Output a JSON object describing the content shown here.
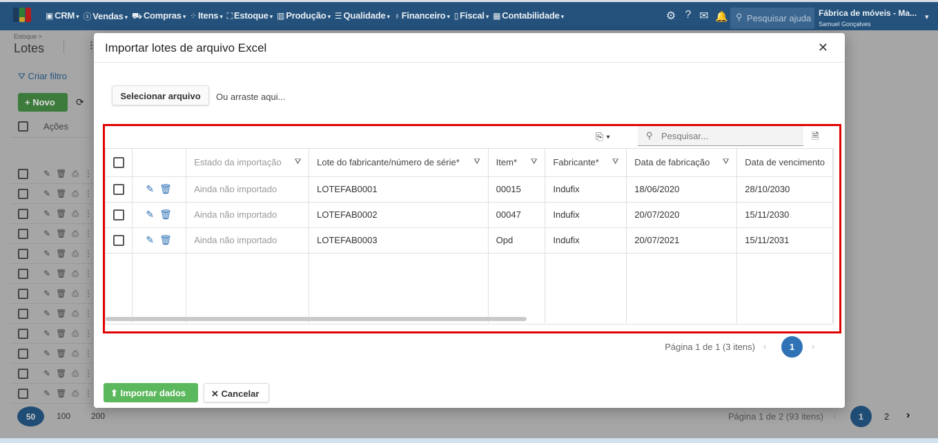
{
  "nav": {
    "menu": [
      "CRM",
      "Vendas",
      "Compras",
      "Itens",
      "Estoque",
      "Produção",
      "Qualidade",
      "Financeiro",
      "Fiscal",
      "Contabilidade"
    ],
    "search_placeholder": "Pesquisar ajuda",
    "company": "Fábrica de móveis - Ma...",
    "user": "Samuel Gonçalves"
  },
  "page": {
    "breadcrumb": "Estoque >",
    "title": "Lotes",
    "filter": "Criar filtro",
    "new_button": "Novo",
    "actions_header": "Ações",
    "page_sizes": [
      "50",
      "100",
      "200"
    ],
    "pager_text": "Página 1 de 2 (93 itens)",
    "pages": [
      "1",
      "2"
    ]
  },
  "dialog": {
    "title": "Importar lotes de arquivo Excel",
    "select_file": "Selecionar arquivo",
    "drag_text": "Ou arraste aqui...",
    "search_placeholder": "Pesquisar...",
    "columns": [
      "Estado da importação",
      "Lote do fabricante/número de série*",
      "Item*",
      "Fabricante*",
      "Data de fabricação",
      "Data de vencimento"
    ],
    "rows": [
      [
        "Ainda não importado",
        "LOTEFAB0001",
        "00015",
        "Indufix",
        "18/06/2020",
        "28/10/2030"
      ],
      [
        "Ainda não importado",
        "LOTEFAB0002",
        "00047",
        "Indufix",
        "20/07/2020",
        "15/11/2030"
      ],
      [
        "Ainda não importado",
        "LOTEFAB0003",
        "Opd",
        "Indufix",
        "20/07/2021",
        "15/11/2031"
      ]
    ],
    "pager_text": "Página 1 de 1 (3 itens)",
    "current_page": "1",
    "import_button": "Importar dados",
    "cancel_button": "Cancelar"
  },
  "colors": {
    "nav": "#24527c",
    "accent": "#2f72b6",
    "success": "#5cb85c",
    "highlight": "#e00000"
  }
}
